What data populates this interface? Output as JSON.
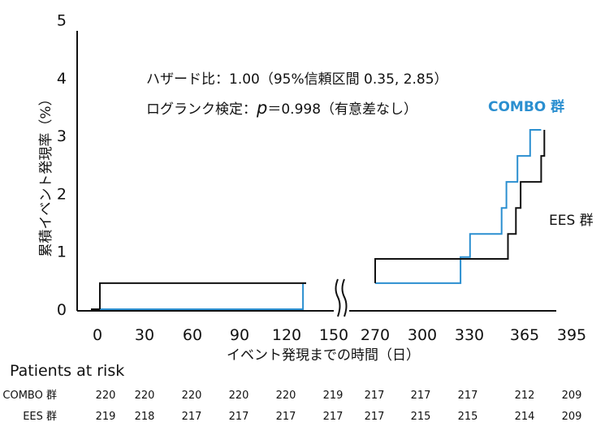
{
  "chart_data": {
    "type": "line",
    "subtype": "kaplan-meier-step",
    "annotations": {
      "hazard_ratio": "ハザード比：1.00（95%信頼区間 0.35, 2.85）",
      "logrank_prefix": "ログランク検定：",
      "logrank_p": "p",
      "logrank_rest": "＝0.998（有意差なし）"
    },
    "ylabel": "累積イベント発現率（%）",
    "xlabel": "イベント発現までの時間（日）",
    "yticks": [
      "0",
      "1",
      "2",
      "3",
      "4",
      "5"
    ],
    "ylim": [
      0,
      5
    ],
    "xticks": [
      "0",
      "30",
      "60",
      "90",
      "120",
      "150",
      "270",
      "300",
      "330",
      "365",
      "395"
    ],
    "x_axis_break": "between 150 and 270",
    "series": [
      {
        "name": "COMBO 群",
        "color": "#2b8fd0",
        "points": [
          [
            0,
            0
          ],
          [
            130,
            0
          ],
          [
            130,
            0.45
          ],
          [
            160,
            0.45
          ],
          [
            270,
            0.45
          ],
          [
            324,
            0.45
          ],
          [
            324,
            0.9
          ],
          [
            330,
            0.9
          ],
          [
            330,
            1.3
          ],
          [
            350,
            1.3
          ],
          [
            350,
            1.75
          ],
          [
            353,
            1.75
          ],
          [
            353,
            2.2
          ],
          [
            360,
            2.2
          ],
          [
            360,
            2.65
          ],
          [
            368,
            2.65
          ],
          [
            368,
            3.1
          ],
          [
            375,
            3.1
          ]
        ]
      },
      {
        "name": "EES 群",
        "color": "#111111",
        "points": [
          [
            0,
            0
          ],
          [
            0,
            0.45
          ],
          [
            160,
            0.45
          ],
          [
            270,
            0.45
          ],
          [
            270,
            0.87
          ],
          [
            354,
            0.87
          ],
          [
            354,
            1.3
          ],
          [
            359,
            1.3
          ],
          [
            359,
            1.75
          ],
          [
            362,
            1.75
          ],
          [
            362,
            2.2
          ],
          [
            375,
            2.2
          ],
          [
            375,
            2.65
          ],
          [
            377,
            2.65
          ],
          [
            377,
            3.1
          ]
        ]
      }
    ],
    "legend": [
      {
        "label": "COMBO 群",
        "color": "#2b8fd0",
        "placement": "right, near top of curves"
      },
      {
        "label": "EES 群",
        "color": "#111111",
        "placement": "right, below curves"
      }
    ],
    "at_risk": {
      "header": "Patients at risk",
      "rows": [
        {
          "label": "COMBO 群",
          "values": [
            "220",
            "220",
            "220",
            "220",
            "220",
            "219",
            "217",
            "217",
            "217",
            "212",
            "209"
          ]
        },
        {
          "label": "EES 群",
          "values": [
            "219",
            "218",
            "217",
            "217",
            "217",
            "217",
            "217",
            "215",
            "215",
            "214",
            "209"
          ]
        }
      ]
    }
  }
}
